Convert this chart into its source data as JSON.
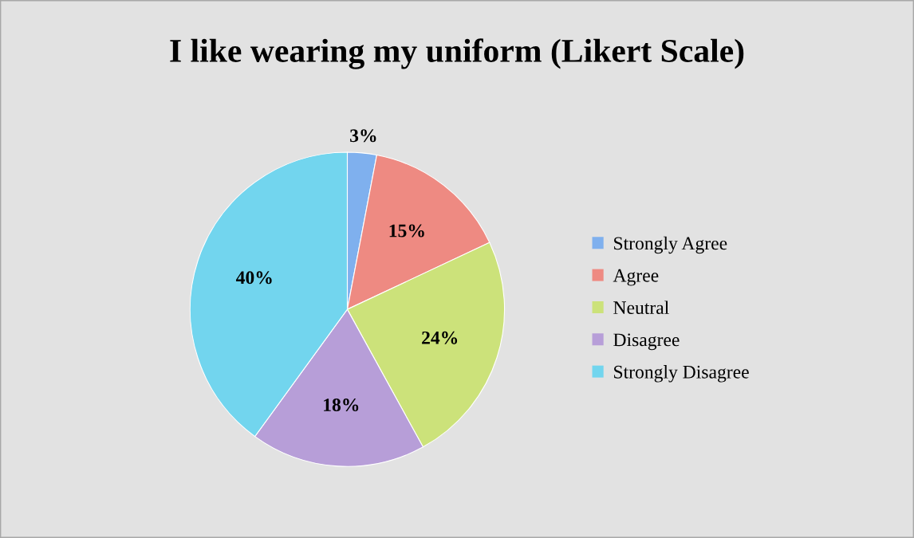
{
  "chart_data": {
    "type": "pie",
    "title": "I like wearing my uniform (Likert Scale)",
    "categories": [
      "Strongly Agree",
      "Agree",
      "Neutral",
      "Disagree",
      "Strongly Disagree"
    ],
    "values": [
      3,
      15,
      24,
      18,
      40
    ],
    "colors": [
      "#7fb0ee",
      "#ee8a82",
      "#cce27a",
      "#b79ed8",
      "#72d5ee"
    ],
    "value_labels": [
      "3%",
      "15%",
      "24%",
      "18%",
      "40%"
    ],
    "legend": "right"
  }
}
